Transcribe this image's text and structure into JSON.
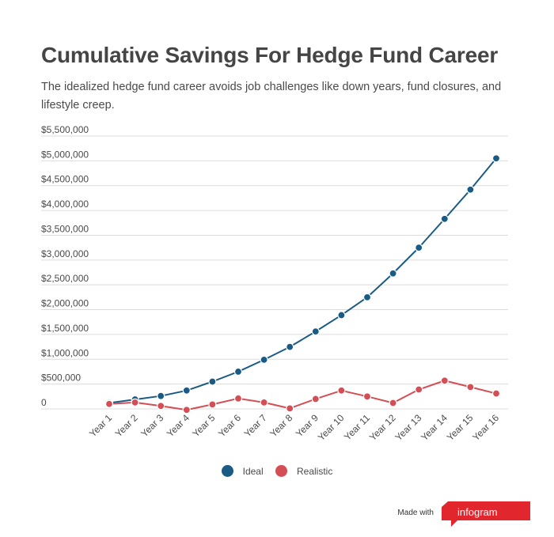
{
  "title": "Cumulative Savings For Hedge Fund Career",
  "subtitle": "The idealized hedge fund career avoids job challenges like down years, fund closures, and lifestyle creep.",
  "footer": {
    "made_with": "Made with",
    "brand": "infogram"
  },
  "colors": {
    "ideal": "#1a5b85",
    "realistic": "#d44e55",
    "grid": "#dcdcdc",
    "text": "#4a4a4a",
    "brand": "#e1262d"
  },
  "chart_data": {
    "type": "line",
    "title": "Cumulative Savings For Hedge Fund Career",
    "categories": [
      "Year 1",
      "Year 2",
      "Year 3",
      "Year 4",
      "Year 5",
      "Year 6",
      "Year 7",
      "Year 8",
      "Year 9",
      "Year 10",
      "Year 11",
      "Year 12",
      "Year 13",
      "Year 14",
      "Year 15",
      "Year 16"
    ],
    "series": [
      {
        "name": "Ideal",
        "color": "#1a5b85",
        "values": [
          120000,
          190000,
          260000,
          370000,
          550000,
          750000,
          990000,
          1250000,
          1560000,
          1890000,
          2250000,
          2730000,
          3250000,
          3830000,
          4420000,
          5050000
        ]
      },
      {
        "name": "Realistic",
        "color": "#d44e55",
        "values": [
          100000,
          130000,
          60000,
          -20000,
          90000,
          210000,
          130000,
          10000,
          200000,
          370000,
          250000,
          120000,
          390000,
          570000,
          440000,
          310000
        ]
      }
    ],
    "ylim": [
      0,
      5500000
    ],
    "yticks": [
      0,
      500000,
      1000000,
      1500000,
      2000000,
      2500000,
      3000000,
      3500000,
      4000000,
      4500000,
      5000000,
      5500000
    ],
    "ytick_labels": [
      "0",
      "$500,000",
      "$1,000,000",
      "$1,500,000",
      "$2,000,000",
      "$2,500,000",
      "$3,000,000",
      "$3,500,000",
      "$4,000,000",
      "$4,500,000",
      "$5,000,000",
      "$5,500,000"
    ],
    "grid": true,
    "legend": "bottom"
  }
}
